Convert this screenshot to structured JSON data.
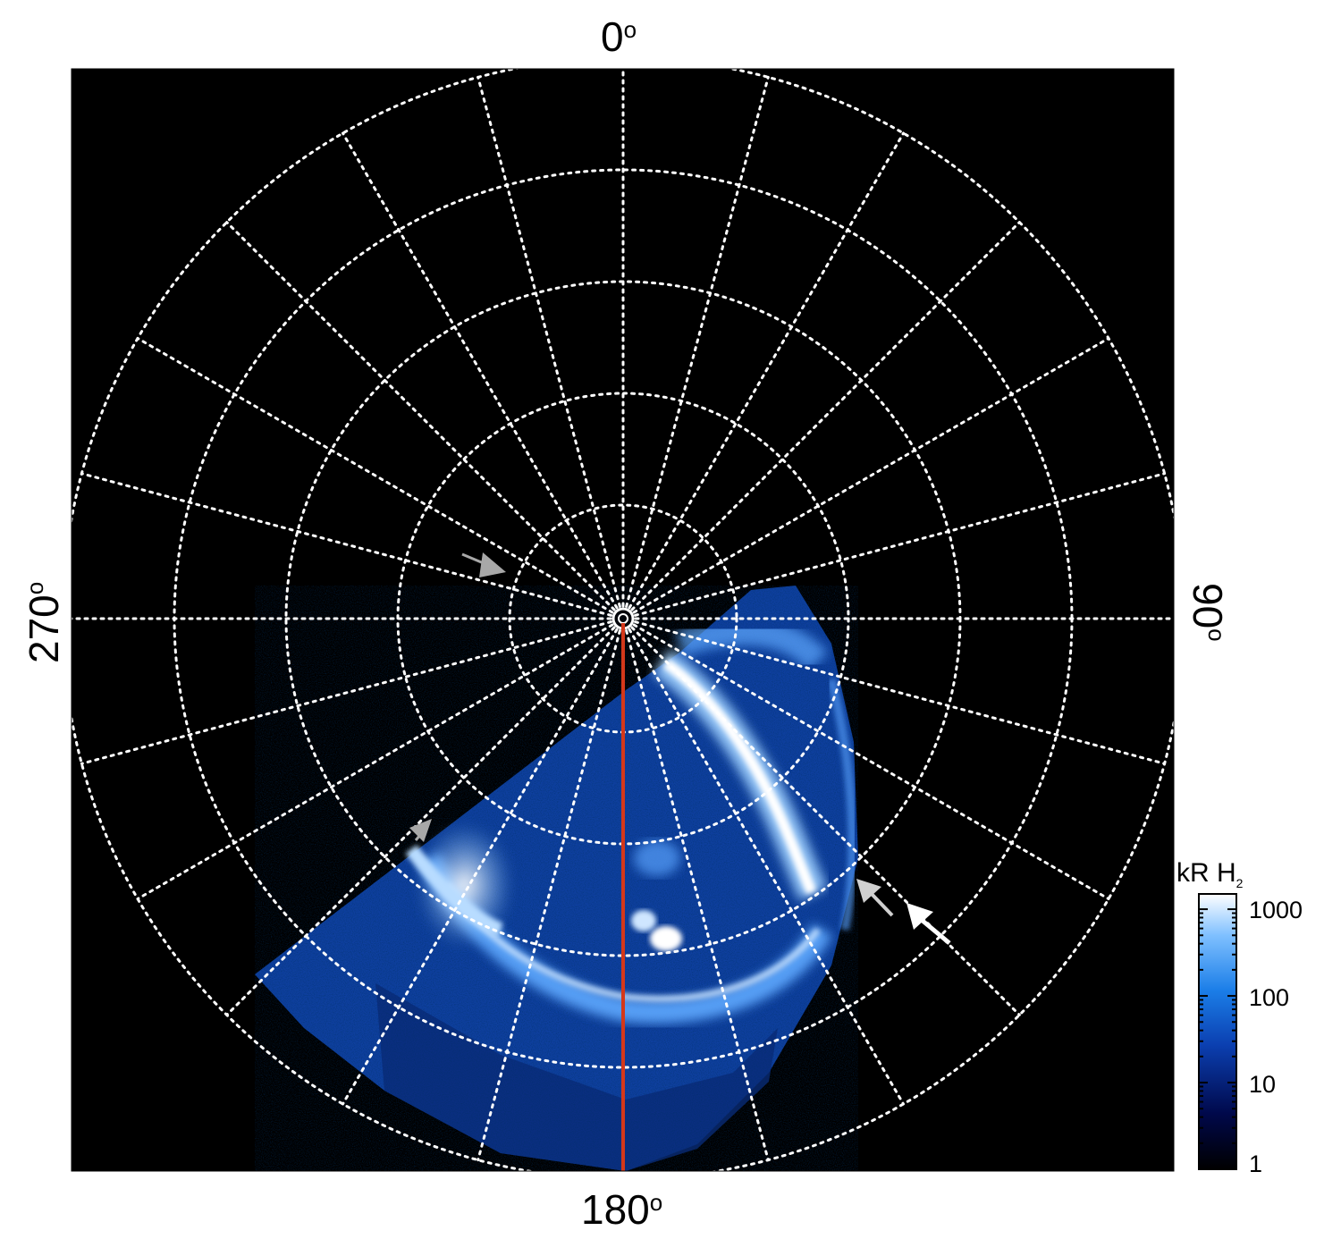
{
  "figure": {
    "labels": {
      "top": "0",
      "right": "90",
      "bottom": "180",
      "left": "270",
      "degree_symbol": "o"
    },
    "colorbar": {
      "title": "kR H",
      "title_subscript": "2",
      "ticks": [
        "1000",
        "100",
        "10",
        "1"
      ],
      "scale": "log",
      "range": [
        1,
        1500
      ],
      "colors": [
        "#000000",
        "#00084a",
        "#0b3fb0",
        "#1b7ee8",
        "#7fc0ff",
        "#ffffff"
      ]
    },
    "grid": {
      "latitude_circles": 5,
      "meridian_spacing_deg": 15,
      "style": "dotted",
      "color": "#ffffff"
    },
    "annotations": {
      "meridian_line_color": "#d4381a",
      "arrow_gray_color": "#a8a8a8",
      "arrow_white_color": "#ffffff"
    }
  }
}
